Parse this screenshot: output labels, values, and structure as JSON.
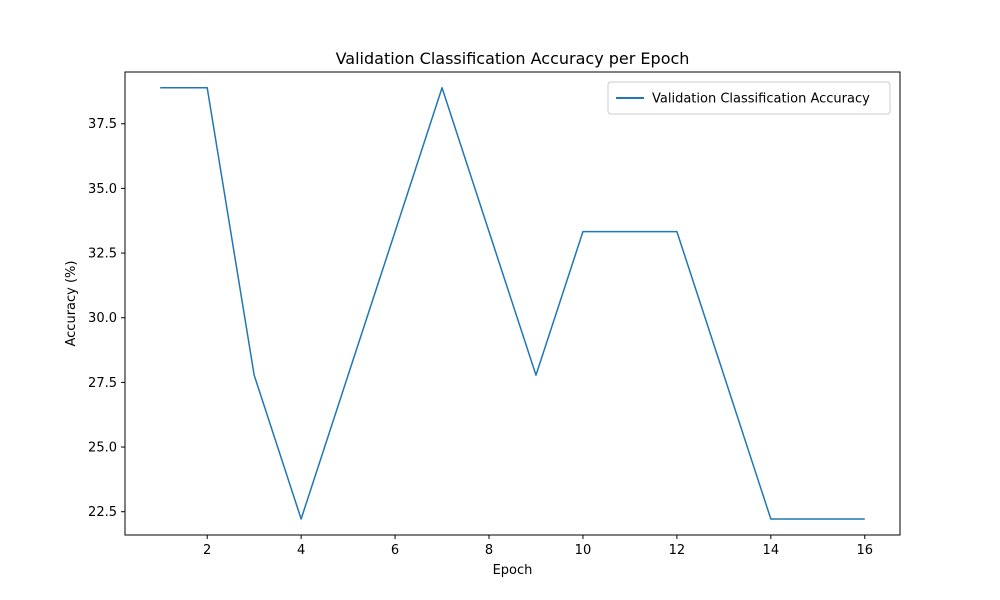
{
  "chart_data": {
    "type": "line",
    "title": "Validation Classification Accuracy per Epoch",
    "xlabel": "Epoch",
    "ylabel": "Accuracy (%)",
    "xlim": [
      0.25,
      16.75
    ],
    "ylim": [
      21.6,
      39.5
    ],
    "xticks": [
      2,
      4,
      6,
      8,
      10,
      12,
      14,
      16
    ],
    "xtick_labels": [
      "2",
      "4",
      "6",
      "8",
      "10",
      "12",
      "14",
      "16"
    ],
    "yticks": [
      22.5,
      25.0,
      27.5,
      30.0,
      32.5,
      35.0,
      37.5
    ],
    "ytick_labels": [
      "22.5",
      "25.0",
      "27.5",
      "30.0",
      "32.5",
      "35.0",
      "37.5"
    ],
    "grid": false,
    "legend_position": "upper right",
    "series": [
      {
        "name": "Validation Classification Accuracy",
        "color": "#1f77b4",
        "x": [
          1,
          2,
          3,
          4,
          5,
          6,
          7,
          8,
          9,
          10,
          11,
          12,
          13,
          14,
          15,
          16
        ],
        "y": [
          38.89,
          38.89,
          27.78,
          22.22,
          27.78,
          33.33,
          38.89,
          33.33,
          27.78,
          33.33,
          33.33,
          33.33,
          27.78,
          22.22,
          22.22,
          22.22
        ]
      }
    ]
  }
}
